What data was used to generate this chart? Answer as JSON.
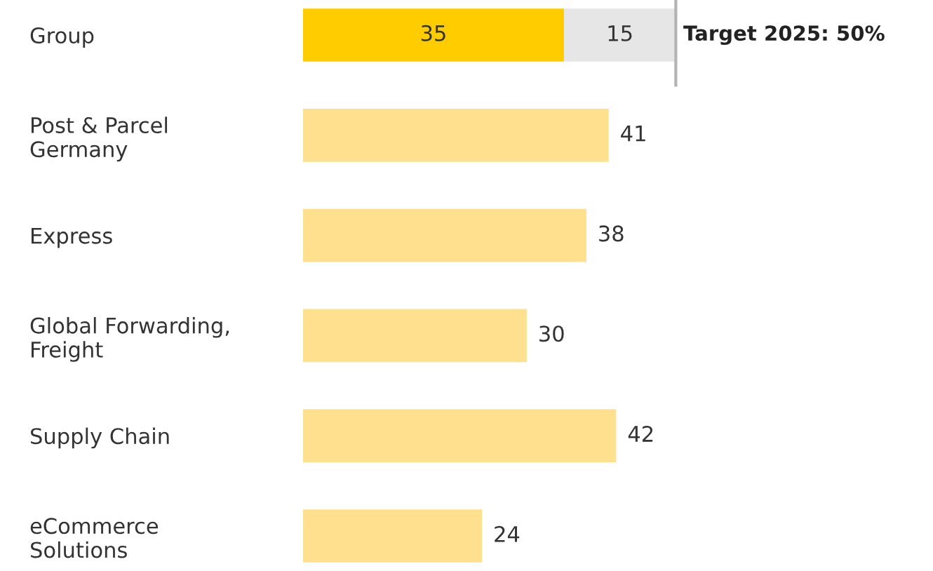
{
  "chart_data": {
    "type": "bar",
    "orientation": "horizontal",
    "stacked": true,
    "data_labels": true,
    "grid": false,
    "legend": false,
    "categories": [
      "Group",
      "Post & Parcel\nGermany",
      "Express",
      "Global Forwarding,\nFreight",
      "Supply Chain",
      "eCommerce\nSolutions"
    ],
    "series": [
      {
        "colors": [
          "#ffcc00",
          "#ffe08f",
          "#ffe08f",
          "#ffe08f",
          "#ffe08f",
          "#ffe08f"
        ],
        "values": [
          35,
          41,
          38,
          30,
          42,
          24
        ]
      },
      {
        "colors": [
          "#e6e6e6",
          null,
          null,
          null,
          null,
          null
        ],
        "values": [
          15,
          null,
          null,
          null,
          null,
          null
        ]
      }
    ],
    "ref_lines": [
      {
        "axis": "x",
        "value": 50,
        "label": "Target 2025: 50%",
        "color": "#b3b3b3"
      }
    ]
  }
}
